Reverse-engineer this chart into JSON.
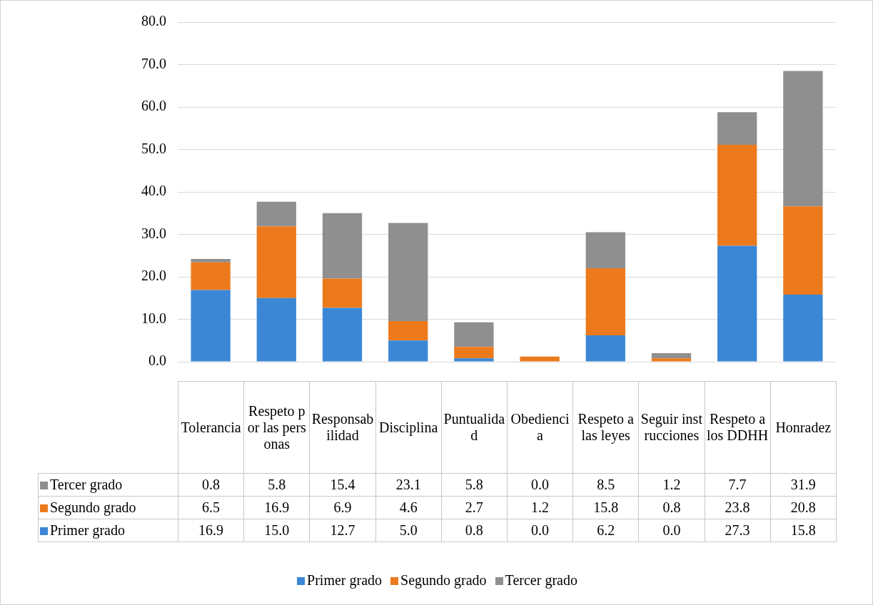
{
  "chart_data": {
    "type": "bar",
    "stacked": true,
    "categories": [
      "Tolerancia",
      "Respeto por las personas",
      "Responsabilidad",
      "Disciplina",
      "Puntualidad",
      "Obediencia",
      "Respeto a las leyes",
      "Seguir instrucciones",
      "Respeto a los DDHH",
      "Honradez"
    ],
    "series": [
      {
        "name": "Primer grado",
        "color": "#3b87d6",
        "values": [
          16.9,
          15.0,
          12.7,
          5.0,
          0.8,
          0.0,
          6.2,
          0.0,
          27.3,
          15.8
        ],
        "value_labels": [
          "16.9",
          "15.0",
          "12.7",
          "5.0",
          "0.8",
          "0.0",
          "6.2",
          "0.0",
          "27.3",
          "15.8"
        ]
      },
      {
        "name": "Segundo grado",
        "color": "#ec7a1c",
        "values": [
          6.5,
          16.9,
          6.9,
          4.6,
          2.7,
          1.2,
          15.8,
          0.8,
          23.8,
          20.8
        ],
        "value_labels": [
          "6.5",
          "16.9",
          "6.9",
          "4.6",
          "2.7",
          "1.2",
          "15.8",
          "0.8",
          "23.8",
          "20.8"
        ]
      },
      {
        "name": "Tercer grado",
        "color": "#8f8f8f",
        "values": [
          0.8,
          5.8,
          15.4,
          23.1,
          5.8,
          0.0,
          8.5,
          1.2,
          7.7,
          31.9
        ],
        "value_labels": [
          "0.8",
          "5.8",
          "15.4",
          "23.1",
          "5.8",
          "0.0",
          "8.5",
          "1.2",
          "7.7",
          "31.9"
        ]
      }
    ],
    "ylim": [
      0,
      80
    ],
    "yticks": [
      {
        "value": 0,
        "label": "0.0"
      },
      {
        "value": 10,
        "label": "10.0"
      },
      {
        "value": 20,
        "label": "20.0"
      },
      {
        "value": 30,
        "label": "30.0"
      },
      {
        "value": 40,
        "label": "40.0"
      },
      {
        "value": 50,
        "label": "50.0"
      },
      {
        "value": 60,
        "label": "60.0"
      },
      {
        "value": 70,
        "label": "70.0"
      },
      {
        "value": 80,
        "label": "80.0"
      }
    ],
    "grid": "y",
    "legend": "bottom"
  }
}
